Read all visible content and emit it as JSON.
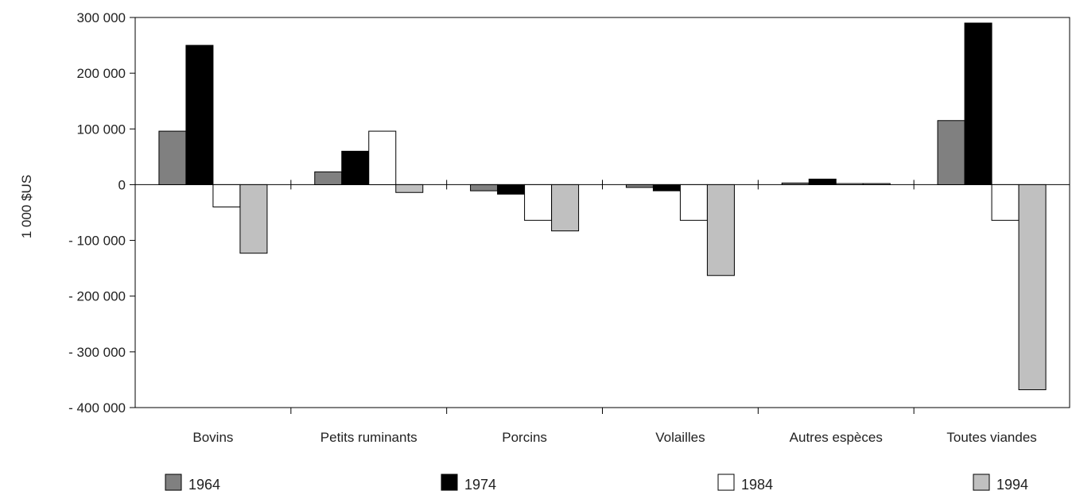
{
  "chart_data": {
    "type": "bar",
    "title": "",
    "xlabel": "",
    "ylabel": "1 000 $US",
    "ylim": [
      -400000,
      300000
    ],
    "yticks": [
      300000,
      200000,
      100000,
      0,
      -100000,
      -200000,
      -300000,
      -400000
    ],
    "ytick_labels": [
      "300 000",
      "200 000",
      "100 000",
      "0",
      "- 100 000",
      "- 200 000",
      "- 300 000",
      "- 400 000"
    ],
    "categories": [
      "Bovins",
      "Petits ruminants",
      "Porcins",
      "Volailles",
      "Autres espèces",
      "Toutes viandes"
    ],
    "series": [
      {
        "name": "1964",
        "color": "#808080",
        "values": [
          96000,
          23000,
          -11000,
          -5000,
          3000,
          115000
        ]
      },
      {
        "name": "1974",
        "color": "#000000",
        "values": [
          250000,
          60000,
          -17000,
          -11000,
          10000,
          290000
        ]
      },
      {
        "name": "1984",
        "color": "#ffffff",
        "values": [
          -40000,
          96000,
          -64000,
          -64000,
          2000,
          -64000
        ]
      },
      {
        "name": "1994",
        "color": "#c0c0c0",
        "values": [
          -123000,
          -14000,
          -83000,
          -163000,
          2000,
          -368000
        ]
      }
    ],
    "grid": false,
    "legend_position": "bottom"
  }
}
